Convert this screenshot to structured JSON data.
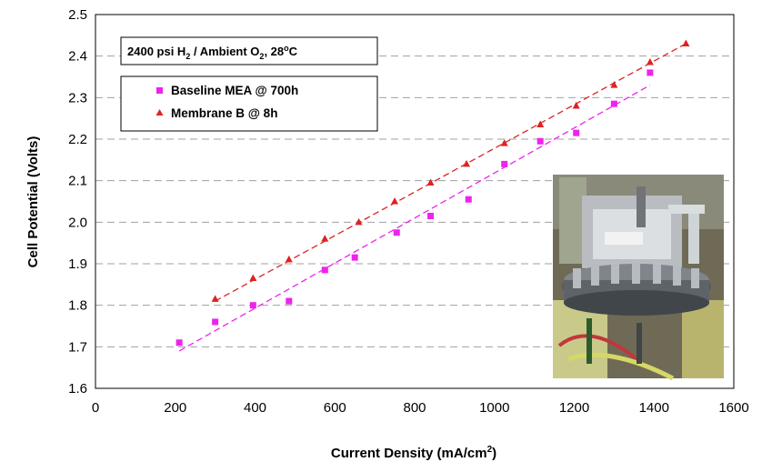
{
  "chart_data": {
    "type": "scatter",
    "title": "",
    "xlabel": "Current Density (mA/cm",
    "xlabel_sup": "2",
    "xlabel_tail": ")",
    "ylabel": "Cell Potential (Volts)",
    "xlim": [
      0,
      1600
    ],
    "ylim": [
      1.6,
      2.5
    ],
    "x_ticks": [
      "0",
      "200",
      "400",
      "600",
      "800",
      "1000",
      "1200",
      "1400",
      "1600"
    ],
    "y_ticks": [
      "1.6",
      "1.7",
      "1.8",
      "1.9",
      "2.0",
      "2.1",
      "2.2",
      "2.3",
      "2.4",
      "2.5"
    ],
    "x_tick_values": [
      0,
      200,
      400,
      600,
      800,
      1000,
      1200,
      1400,
      1600
    ],
    "y_tick_values": [
      1.6,
      1.7,
      1.8,
      1.9,
      2.0,
      2.1,
      2.2,
      2.3,
      2.4,
      2.5
    ],
    "grid": "horizontal dashed",
    "legend_position": "top-left",
    "condition_box": {
      "part1": "2400 psi H",
      "sub1": "2",
      "part2": " /  Ambient O",
      "sub2": "2",
      "part3": ", 28",
      "sup": "o",
      "part4": "C"
    },
    "series": [
      {
        "name": "Baseline MEA @ 700h",
        "marker": "square",
        "color": "#ee22ee",
        "x": [
          210,
          300,
          395,
          485,
          575,
          650,
          755,
          840,
          935,
          1025,
          1115,
          1205,
          1300,
          1390
        ],
        "y": [
          1.71,
          1.76,
          1.8,
          1.81,
          1.885,
          1.915,
          1.975,
          2.015,
          2.055,
          2.14,
          2.195,
          2.215,
          2.285,
          2.36
        ],
        "trend": {
          "x": [
            210,
            1390
          ],
          "y": [
            1.69,
            2.33
          ]
        }
      },
      {
        "name": "Membrane B @ 8h",
        "marker": "triangle",
        "color": "#dd2222",
        "x": [
          300,
          395,
          485,
          575,
          660,
          750,
          840,
          930,
          1025,
          1115,
          1205,
          1300,
          1390,
          1480
        ],
        "y": [
          1.815,
          1.865,
          1.91,
          1.96,
          2.0,
          2.05,
          2.095,
          2.14,
          2.19,
          2.235,
          2.28,
          2.33,
          2.385,
          2.43
        ],
        "trend": {
          "x": [
            300,
            1480
          ],
          "y": [
            1.81,
            2.43
          ]
        }
      }
    ],
    "photo_inset": "photo-of-electrolyzer-cell-stack"
  }
}
